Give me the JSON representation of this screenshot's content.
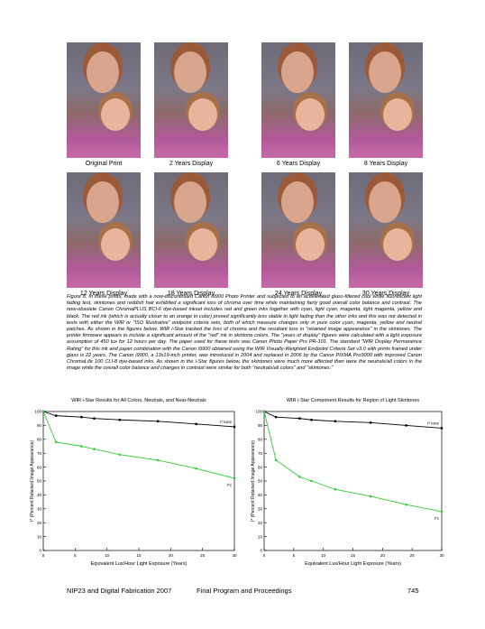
{
  "photos": [
    {
      "caption": "Original Print"
    },
    {
      "caption": "2 Years Display"
    },
    {
      "caption": "6 Years Display"
    },
    {
      "caption": "8 Years Display"
    },
    {
      "caption": "12 Years Display"
    },
    {
      "caption": "18 Years Display"
    },
    {
      "caption": "24 Years Display"
    },
    {
      "caption": "30 Years Display"
    }
  ],
  "figure_caption": "Figure 8. In these prints, made with a now-discontinued Canon i9900 Photo Printer and subjected to an accelerated glass-filtered cool white fluorescent light fading test, skintones and reddish hair exhibited a significant loss of chroma over time while maintaining fairly good overall color balance and contrast. The now-obsolete Canon ChromaPLUS BCI-6 dye-based inkset includes red and green inks together with cyan, light cyan, magenta, light magenta, yellow and black. The red ink (which is actually closer to an orange in color) proved significantly less stable in light fading than the other inks and this was not detected in tests with either the WIR or \"ISO Illustrative\" endpoint criteria sets, both of which measure changes only in pure color cyan, magenta, yellow and neutral patches. As shown in the figures below, WIR i-Star tracked the loss of chroma and the resultant loss in \"retained image appearance\" in the skintones. The printer firmware appears to include a significant amount of the \"red\" ink in skintone colors. The \"years of display\" figures were calculated with a light exposure assumption of 450 lux for 12 hours per day. The paper used for these tests was Canon Photo Paper Pro PR-101. The standard \"WIR Display Permanence Rating\" for this ink and paper combination with the Canon i9900 obtained using the WIR Visually-Weighted Endpoint Criteria Set v3.0 with prints framed under glass is 22 years. The Canon i9900, a 13x19-inch printer, was introduced in 2004 and replaced in 2006 by the Canon PIXMA Pro9000 with improved Canon ChromaLife 100 CLI-8 dye-based inks. As shown in the i-Star figures below, the skintones were much more affected than were the neutrals/all colors in the image while the overall color balance and changes in contrast were similar for both \"neutrals/all colors\" and \"skintones.\"",
  "chart_data": [
    {
      "type": "line",
      "title": "WIR i-Star Results for All Colors, Neutrals, and Near-Neutrals",
      "x_label": "Equivalent Lux/Hour Light Exposure (Years)",
      "y_label": "I* (Percent Retained Image Appearance)",
      "x": [
        0,
        2,
        6,
        8,
        12,
        18,
        24,
        30
      ],
      "xlim": [
        0,
        30
      ],
      "xticks": [
        0,
        5,
        10,
        15,
        20,
        25,
        30
      ],
      "ylim": [
        0,
        100
      ],
      "yticks": [
        0,
        10,
        20,
        30,
        40,
        50,
        60,
        70,
        80,
        90,
        100
      ],
      "series": [
        {
          "name": "I* tone",
          "color": "#000000",
          "values": [
            100,
            97,
            96,
            95,
            94,
            93,
            91,
            89
          ]
        },
        {
          "name": "I*c",
          "color": "#33cc33",
          "values": [
            100,
            78,
            75,
            73,
            69,
            65,
            59,
            52
          ]
        }
      ]
    },
    {
      "type": "line",
      "title": "WIR i-Star Component Results for Region of Light Skintones",
      "x_label": "Equivalent Lux/Hour Light Exposure (Years)",
      "y_label": "I* (Percent Retained Image Appearance)",
      "x": [
        0,
        2,
        6,
        8,
        12,
        18,
        24,
        30
      ],
      "xlim": [
        0,
        30
      ],
      "xticks": [
        0,
        5,
        10,
        15,
        20,
        25,
        30
      ],
      "ylim": [
        0,
        100
      ],
      "yticks": [
        0,
        10,
        20,
        30,
        40,
        50,
        60,
        70,
        80,
        90,
        100
      ],
      "series": [
        {
          "name": "I* tone",
          "color": "#000000",
          "values": [
            100,
            96,
            95,
            94,
            93,
            92,
            90,
            88
          ]
        },
        {
          "name": "I*c",
          "color": "#33cc33",
          "values": [
            100,
            65,
            53,
            50,
            44,
            39,
            33,
            28
          ]
        }
      ]
    }
  ],
  "footer": {
    "left": "NIP23 and Digital Fabrication 2007",
    "center": "Final Program and Proceedings",
    "page": "745"
  }
}
